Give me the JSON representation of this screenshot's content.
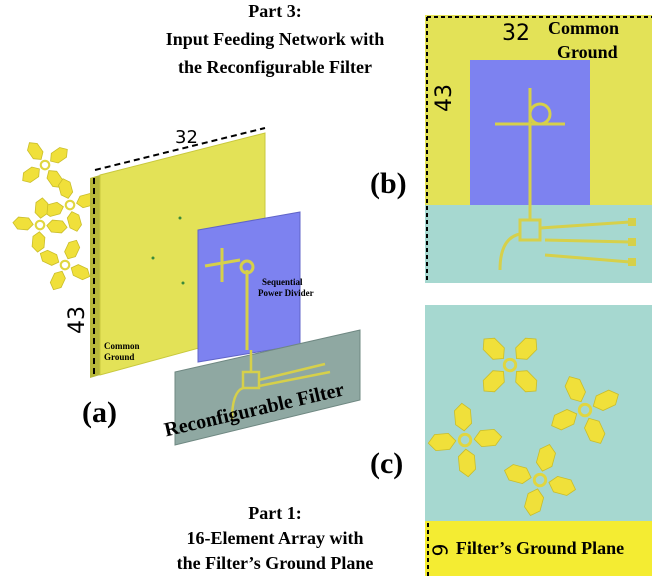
{
  "header": {
    "lines": [
      "Part 3:",
      "Input Feeding Network with",
      "the Reconfigurable Filter"
    ]
  },
  "panel_a": {
    "label": "(a)",
    "width": 32,
    "height": 43,
    "ground_label": [
      "Common",
      "Ground"
    ],
    "divider_label": [
      "Sequential",
      "Power Divider"
    ],
    "filter_label": "Reconfigurable Filter"
  },
  "panel_b": {
    "label": "(b)",
    "width": 32,
    "height": 43,
    "ground_label": [
      "Common",
      "Ground"
    ]
  },
  "panel_c": {
    "label": "(c)",
    "height": 9,
    "plane_label": "Filter’s Ground Plane"
  },
  "footer": {
    "lines": [
      "Part 1:",
      "16-Element Array with",
      "the Filter’s Ground Plane"
    ]
  }
}
